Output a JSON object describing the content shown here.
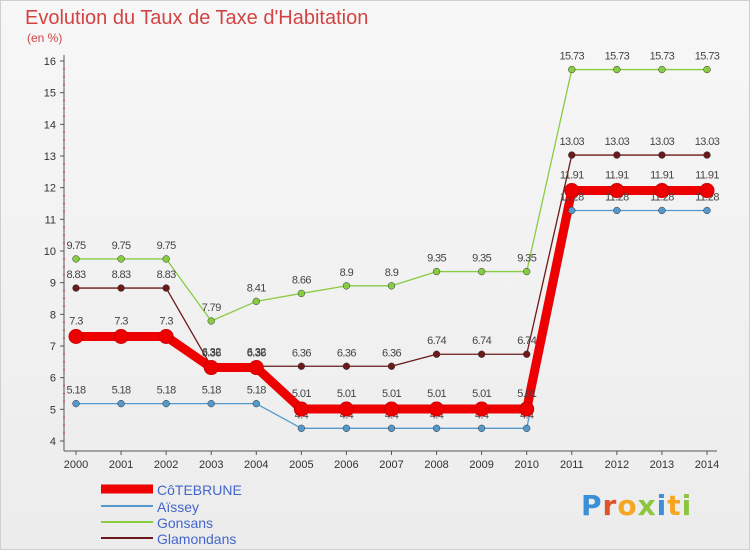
{
  "header": {
    "title": "Evolution du Taux de Taxe d'Habitation",
    "subtitle": "(en %)"
  },
  "logo": {
    "letters": [
      "P",
      "r",
      "o",
      "x",
      "i",
      "t",
      "i"
    ],
    "colors": [
      "#3a8fd6",
      "#e0522d",
      "#f5a623",
      "#8cc63f",
      "#3a8fd6",
      "#f5a623",
      "#8cc63f"
    ]
  },
  "chart_data": {
    "type": "line",
    "categories": [
      "2000",
      "2001",
      "2002",
      "2003",
      "2004",
      "2005",
      "2006",
      "2007",
      "2008",
      "2009",
      "2010",
      "2011",
      "2012",
      "2013",
      "2014"
    ],
    "ylim": [
      4,
      16
    ],
    "yticks": [
      "4",
      "5",
      "6",
      "7",
      "8",
      "9",
      "10",
      "11",
      "12",
      "13",
      "14",
      "15",
      "16"
    ],
    "grid": false,
    "legend_position": "bottom-left",
    "series": [
      {
        "name": "Gonsans",
        "color": "#88cc44",
        "values": [
          9.75,
          9.75,
          9.75,
          7.79,
          8.41,
          8.66,
          8.9,
          8.9,
          9.35,
          9.35,
          9.35,
          15.73,
          15.73,
          15.73,
          15.73
        ],
        "labels": [
          "9.75",
          "9.75",
          "9.75",
          "7.79",
          "8.41",
          "8.66",
          "8.9",
          "8.9",
          "9.35",
          "9.35",
          "9.35",
          "15.73",
          "15.73",
          "15.73",
          "15.73"
        ]
      },
      {
        "name": "Glamondans",
        "color": "#6b1a1a",
        "values": [
          8.83,
          8.83,
          8.83,
          6.36,
          6.36,
          6.36,
          6.36,
          6.36,
          6.74,
          6.74,
          6.74,
          13.03,
          13.03,
          13.03,
          13.03
        ],
        "labels": [
          "8.83",
          "8.83",
          "8.83",
          "6.36",
          "6.36",
          "6.36",
          "6.36",
          "6.36",
          "6.74",
          "6.74",
          "6.74",
          "13.03",
          "13.03",
          "13.03",
          "13.03"
        ]
      },
      {
        "name": "Aïssey",
        "color": "#5599cc",
        "values": [
          5.18,
          5.18,
          5.18,
          5.18,
          5.18,
          4.4,
          4.4,
          4.4,
          4.4,
          4.4,
          4.4,
          11.28,
          11.28,
          11.28,
          11.28
        ],
        "labels": [
          "5.18",
          "5.18",
          "5.18",
          "5.18",
          "5.18",
          "4.4",
          "4.4",
          "4.4",
          "4.4",
          "4.4",
          "4.4",
          "11.28",
          "11.28",
          "11.28",
          "11.28"
        ]
      },
      {
        "name": "CôTEBRUNE",
        "color": "#ee0000",
        "values": [
          7.3,
          7.3,
          7.3,
          6.32,
          6.32,
          5.01,
          5.01,
          5.01,
          5.01,
          5.01,
          5.01,
          11.91,
          11.91,
          11.91,
          11.91
        ],
        "labels": [
          "7.3",
          "7.3",
          "7.3",
          "6.32",
          "6.32",
          "5.01",
          "5.01",
          "5.01",
          "5.01",
          "5.01",
          "5.01",
          "11.91",
          "11.91",
          "11.91",
          "11.91"
        ]
      }
    ],
    "legend": [
      "CôTEBRUNE",
      "Aïssey",
      "Gonsans",
      "Glamondans"
    ]
  }
}
